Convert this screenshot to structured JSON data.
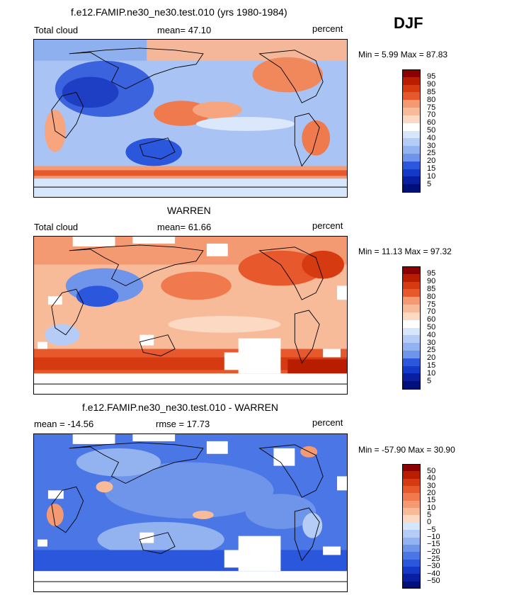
{
  "season": "DJF",
  "panels": [
    {
      "id": "model",
      "title": "f.e12.FAMIP.ne30_ne30.test.010 (yrs 1980-1984)",
      "left_label": "Total cloud",
      "center_label": "mean=  47.10",
      "right_label": "percent",
      "minmax": "Min =   5.99 Max =  87.83",
      "colorbar": {
        "colors": [
          "#8b0000",
          "#b81d00",
          "#d63a10",
          "#e8582d",
          "#f07a4d",
          "#f49a72",
          "#f8bb99",
          "#fbd9c2",
          "#ffffff",
          "#d6e6fb",
          "#b5cdf6",
          "#93b3f0",
          "#6e95ea",
          "#4a76e6",
          "#2a57dc",
          "#1438c8",
          "#0a1fa0",
          "#00107a"
        ],
        "ticks": [
          "95",
          "90",
          "85",
          "80",
          "75",
          "70",
          "60",
          "50",
          "40",
          "30",
          "25",
          "20",
          "15",
          "10",
          "5"
        ]
      }
    },
    {
      "id": "obs",
      "title": "WARREN",
      "left_label": "Total cloud",
      "center_label": "mean=  61.66",
      "right_label": "percent",
      "minmax": "Min =  11.13 Max =  97.32",
      "colorbar": {
        "colors": [
          "#8b0000",
          "#b81d00",
          "#d63a10",
          "#e8582d",
          "#f07a4d",
          "#f49a72",
          "#f8bb99",
          "#fbd9c2",
          "#ffffff",
          "#d6e6fb",
          "#b5cdf6",
          "#93b3f0",
          "#6e95ea",
          "#4a76e6",
          "#2a57dc",
          "#1438c8",
          "#0a1fa0",
          "#00107a"
        ],
        "ticks": [
          "95",
          "90",
          "85",
          "80",
          "75",
          "70",
          "60",
          "50",
          "40",
          "30",
          "25",
          "20",
          "15",
          "10",
          "5"
        ]
      }
    },
    {
      "id": "diff",
      "title": "f.e12.FAMIP.ne30_ne30.test.010 - WARREN",
      "left_label": "mean = -14.56",
      "center_label": "rmse =  17.73",
      "right_label": "percent",
      "minmax": "Min = -57.90 Max =  30.90",
      "colorbar": {
        "colors": [
          "#8b0000",
          "#b81d00",
          "#d63a10",
          "#e8582d",
          "#f07a4d",
          "#f49a72",
          "#f8bb99",
          "#fbd9c2",
          "#ffffff",
          "#d6e6fb",
          "#b5cdf6",
          "#93b3f0",
          "#6e95ea",
          "#4a76e6",
          "#2a57dc",
          "#1438c8",
          "#0a1fa0",
          "#00107a"
        ],
        "ticks": [
          "50",
          "40",
          "30",
          "20",
          "15",
          "10",
          "5",
          "0",
          "−5",
          "−10",
          "−15",
          "−20",
          "−25",
          "−30",
          "−40",
          "−50"
        ]
      }
    }
  ]
}
